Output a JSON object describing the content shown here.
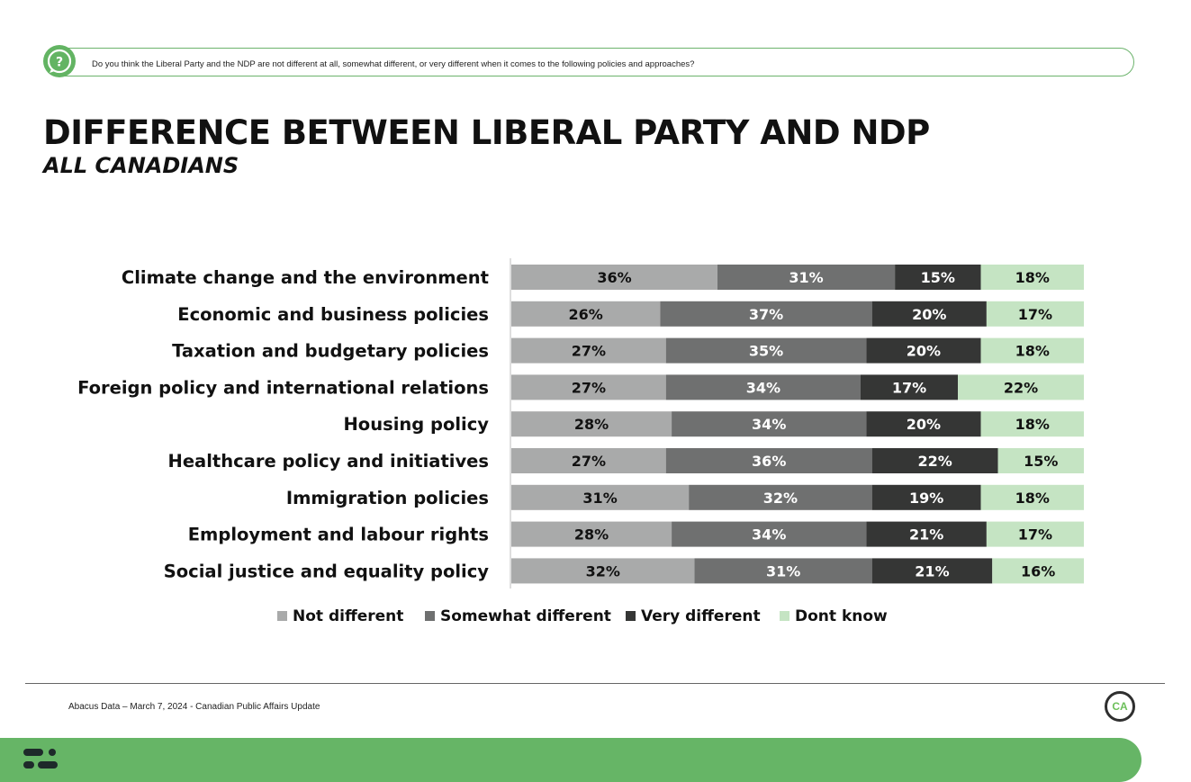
{
  "question": "Do you think the Liberal Party and the NDP are not different at all, somewhat different, or very different when it comes to the following policies and approaches?",
  "title": "DIFFERENCE BETWEEN LIBERAL PARTY AND NDP",
  "subtitle": "ALL CANADIANS",
  "footer": {
    "source": "Abacus Data – March 7, 2024 - Canadian Public Affairs Update",
    "logo_text": "CA"
  },
  "colors": {
    "accent": "#66b566",
    "not_different": "#a9aaaa",
    "somewhat_different": "#6f7070",
    "very_different": "#353635",
    "dont_know": "#c5e4c3"
  },
  "chart_data": {
    "type": "bar",
    "orientation": "horizontal-stacked",
    "categories": [
      "Climate change and the environment",
      "Economic and business policies",
      "Taxation and budgetary policies",
      "Foreign policy and international relations",
      "Housing policy",
      "Healthcare policy and initiatives",
      "Immigration policies",
      "Employment and labour rights",
      "Social justice and equality policy"
    ],
    "series": [
      {
        "name": "Not different",
        "color": "#a9aaaa",
        "label_color": "#111111",
        "values": [
          36,
          26,
          27,
          27,
          28,
          27,
          31,
          28,
          32
        ]
      },
      {
        "name": "Somewhat different",
        "color": "#6f7070",
        "label_color": "#ffffff",
        "values": [
          31,
          37,
          35,
          34,
          34,
          36,
          32,
          34,
          31
        ]
      },
      {
        "name": "Very different",
        "color": "#353635",
        "label_color": "#ffffff",
        "values": [
          15,
          20,
          20,
          17,
          20,
          22,
          19,
          21,
          21
        ]
      },
      {
        "name": "Dont know",
        "color": "#c5e4c3",
        "label_color": "#111111",
        "values": [
          18,
          17,
          18,
          22,
          18,
          15,
          18,
          17,
          16
        ]
      }
    ],
    "value_suffix": "%",
    "legend_position": "bottom"
  }
}
